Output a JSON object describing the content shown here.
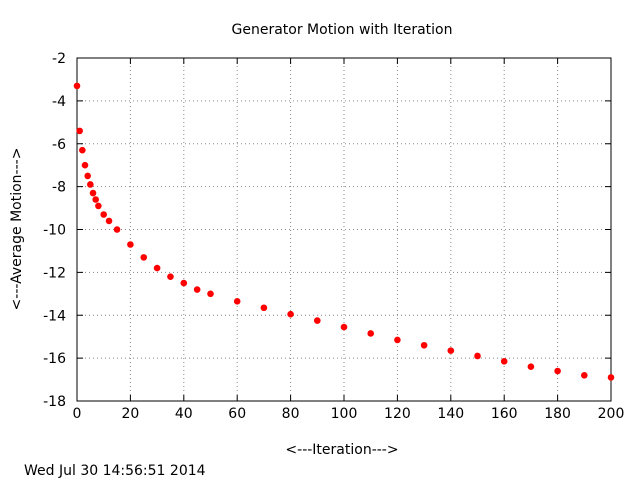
{
  "chart_data": {
    "type": "scatter",
    "title": "Generator Motion with Iteration",
    "xlabel": "<---Iteration--->",
    "ylabel": "<---Average Motion--->",
    "xlim": [
      0,
      200
    ],
    "ylim": [
      -18,
      -2
    ],
    "xticks": [
      0,
      20,
      40,
      60,
      80,
      100,
      120,
      140,
      160,
      180,
      200
    ],
    "yticks": [
      -2,
      -4,
      -6,
      -8,
      -10,
      -12,
      -14,
      -16,
      -18
    ],
    "grid": true,
    "grid_style": "dotted",
    "marker_color": "#ff0000",
    "series": [
      {
        "x": [
          0,
          1,
          2,
          3,
          4,
          5,
          6,
          7,
          8,
          10,
          12,
          15,
          20,
          25,
          30,
          35,
          40,
          45,
          50,
          60,
          70,
          80,
          90,
          100,
          110,
          120,
          130,
          140,
          150,
          160,
          170,
          180,
          190,
          200
        ],
        "y": [
          -3.3,
          -5.4,
          -6.3,
          -7.0,
          -7.5,
          -7.9,
          -8.3,
          -8.6,
          -8.9,
          -9.3,
          -9.6,
          -10.0,
          -10.7,
          -11.3,
          -11.8,
          -12.2,
          -12.5,
          -12.8,
          -13.0,
          -13.35,
          -13.65,
          -13.95,
          -14.25,
          -14.55,
          -14.85,
          -15.15,
          -15.4,
          -15.65,
          -15.9,
          -16.15,
          -16.4,
          -16.6,
          -16.8,
          -16.9
        ]
      }
    ]
  },
  "timestamp": "Wed Jul 30 14:56:51 2014"
}
